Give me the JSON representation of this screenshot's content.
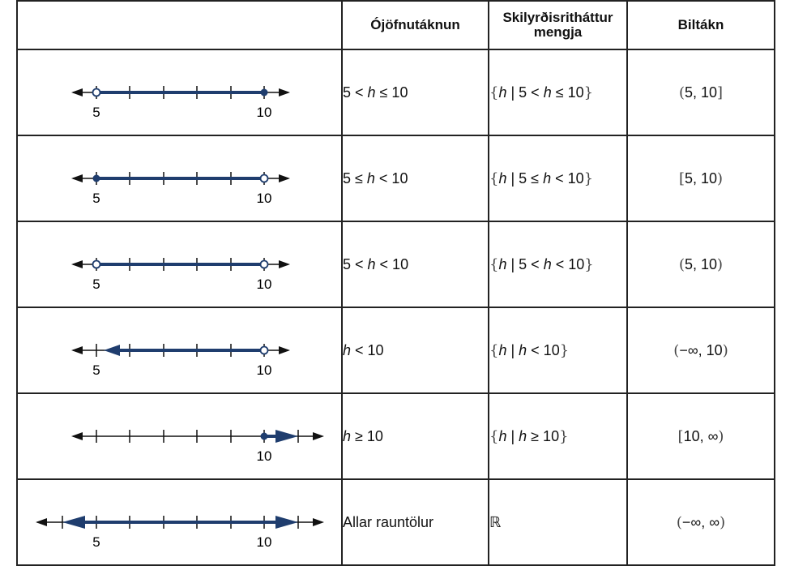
{
  "header": {
    "col1": "",
    "col2": "Ójöfnutáknun",
    "col3": "Skilyrðisritháttur mengja",
    "col4": "Biltákn"
  },
  "colors": {
    "line": "#1f3d6e",
    "axis": "#111111"
  },
  "rows": [
    {
      "numberline": {
        "kind": "segment",
        "left_closed": false,
        "right_closed": true,
        "labels": [
          "5",
          "10"
        ]
      },
      "inequality": {
        "a": "5 < ",
        "v": "h",
        "b": " ≤ 10"
      },
      "setbuilder": {
        "open": "{",
        "v1": "h",
        "bar": " | ",
        "a": "5 < ",
        "v2": "h",
        "b": " ≤ 10",
        "close": "}"
      },
      "interval": {
        "open": "(",
        "body": "5, 10",
        "close": "]"
      }
    },
    {
      "numberline": {
        "kind": "segment",
        "left_closed": true,
        "right_closed": false,
        "labels": [
          "5",
          "10"
        ]
      },
      "inequality": {
        "a": "5 ≤ ",
        "v": "h",
        "b": " < 10"
      },
      "setbuilder": {
        "open": "{",
        "v1": "h",
        "bar": " | ",
        "a": "5 ≤ ",
        "v2": "h",
        "b": " < 10",
        "close": "}"
      },
      "interval": {
        "open": "[",
        "body": "5, 10",
        "close": ")"
      }
    },
    {
      "numberline": {
        "kind": "segment",
        "left_closed": false,
        "right_closed": false,
        "labels": [
          "5",
          "10"
        ]
      },
      "inequality": {
        "a": "5 < ",
        "v": "h",
        "b": " < 10"
      },
      "setbuilder": {
        "open": "{",
        "v1": "h",
        "bar": " | ",
        "a": "5 < ",
        "v2": "h",
        "b": " < 10",
        "close": "}"
      },
      "interval": {
        "open": "(",
        "body": "5, 10",
        "close": ")"
      }
    },
    {
      "numberline": {
        "kind": "left-ray",
        "right_closed": false,
        "labels": [
          "5",
          "10"
        ]
      },
      "inequality": {
        "a": "",
        "v": "h",
        "b": " < 10"
      },
      "setbuilder": {
        "open": "{",
        "v1": "h",
        "bar": " | ",
        "a": "",
        "v2": "h",
        "b": " < 10",
        "close": "}"
      },
      "interval": {
        "open": "(",
        "body": "−∞, 10",
        "close": ")"
      }
    },
    {
      "numberline": {
        "kind": "right-ray",
        "left_closed": true,
        "labels": [
          "10"
        ]
      },
      "inequality": {
        "a": "",
        "v": "h",
        "b": " ≥ 10"
      },
      "setbuilder": {
        "open": "{",
        "v1": "h",
        "bar": " | ",
        "a": "",
        "v2": "h",
        "b": " ≥ 10",
        "close": "}"
      },
      "interval": {
        "open": "[",
        "body": "10, ∞",
        "close": ")"
      }
    },
    {
      "numberline": {
        "kind": "all",
        "labels": [
          "5",
          "10"
        ]
      },
      "inequality": {
        "text": "Allar rauntölur"
      },
      "setbuilder": {
        "symbol": "ℝ"
      },
      "interval": {
        "open": "(",
        "body": "−∞, ∞",
        "close": ")"
      }
    }
  ]
}
